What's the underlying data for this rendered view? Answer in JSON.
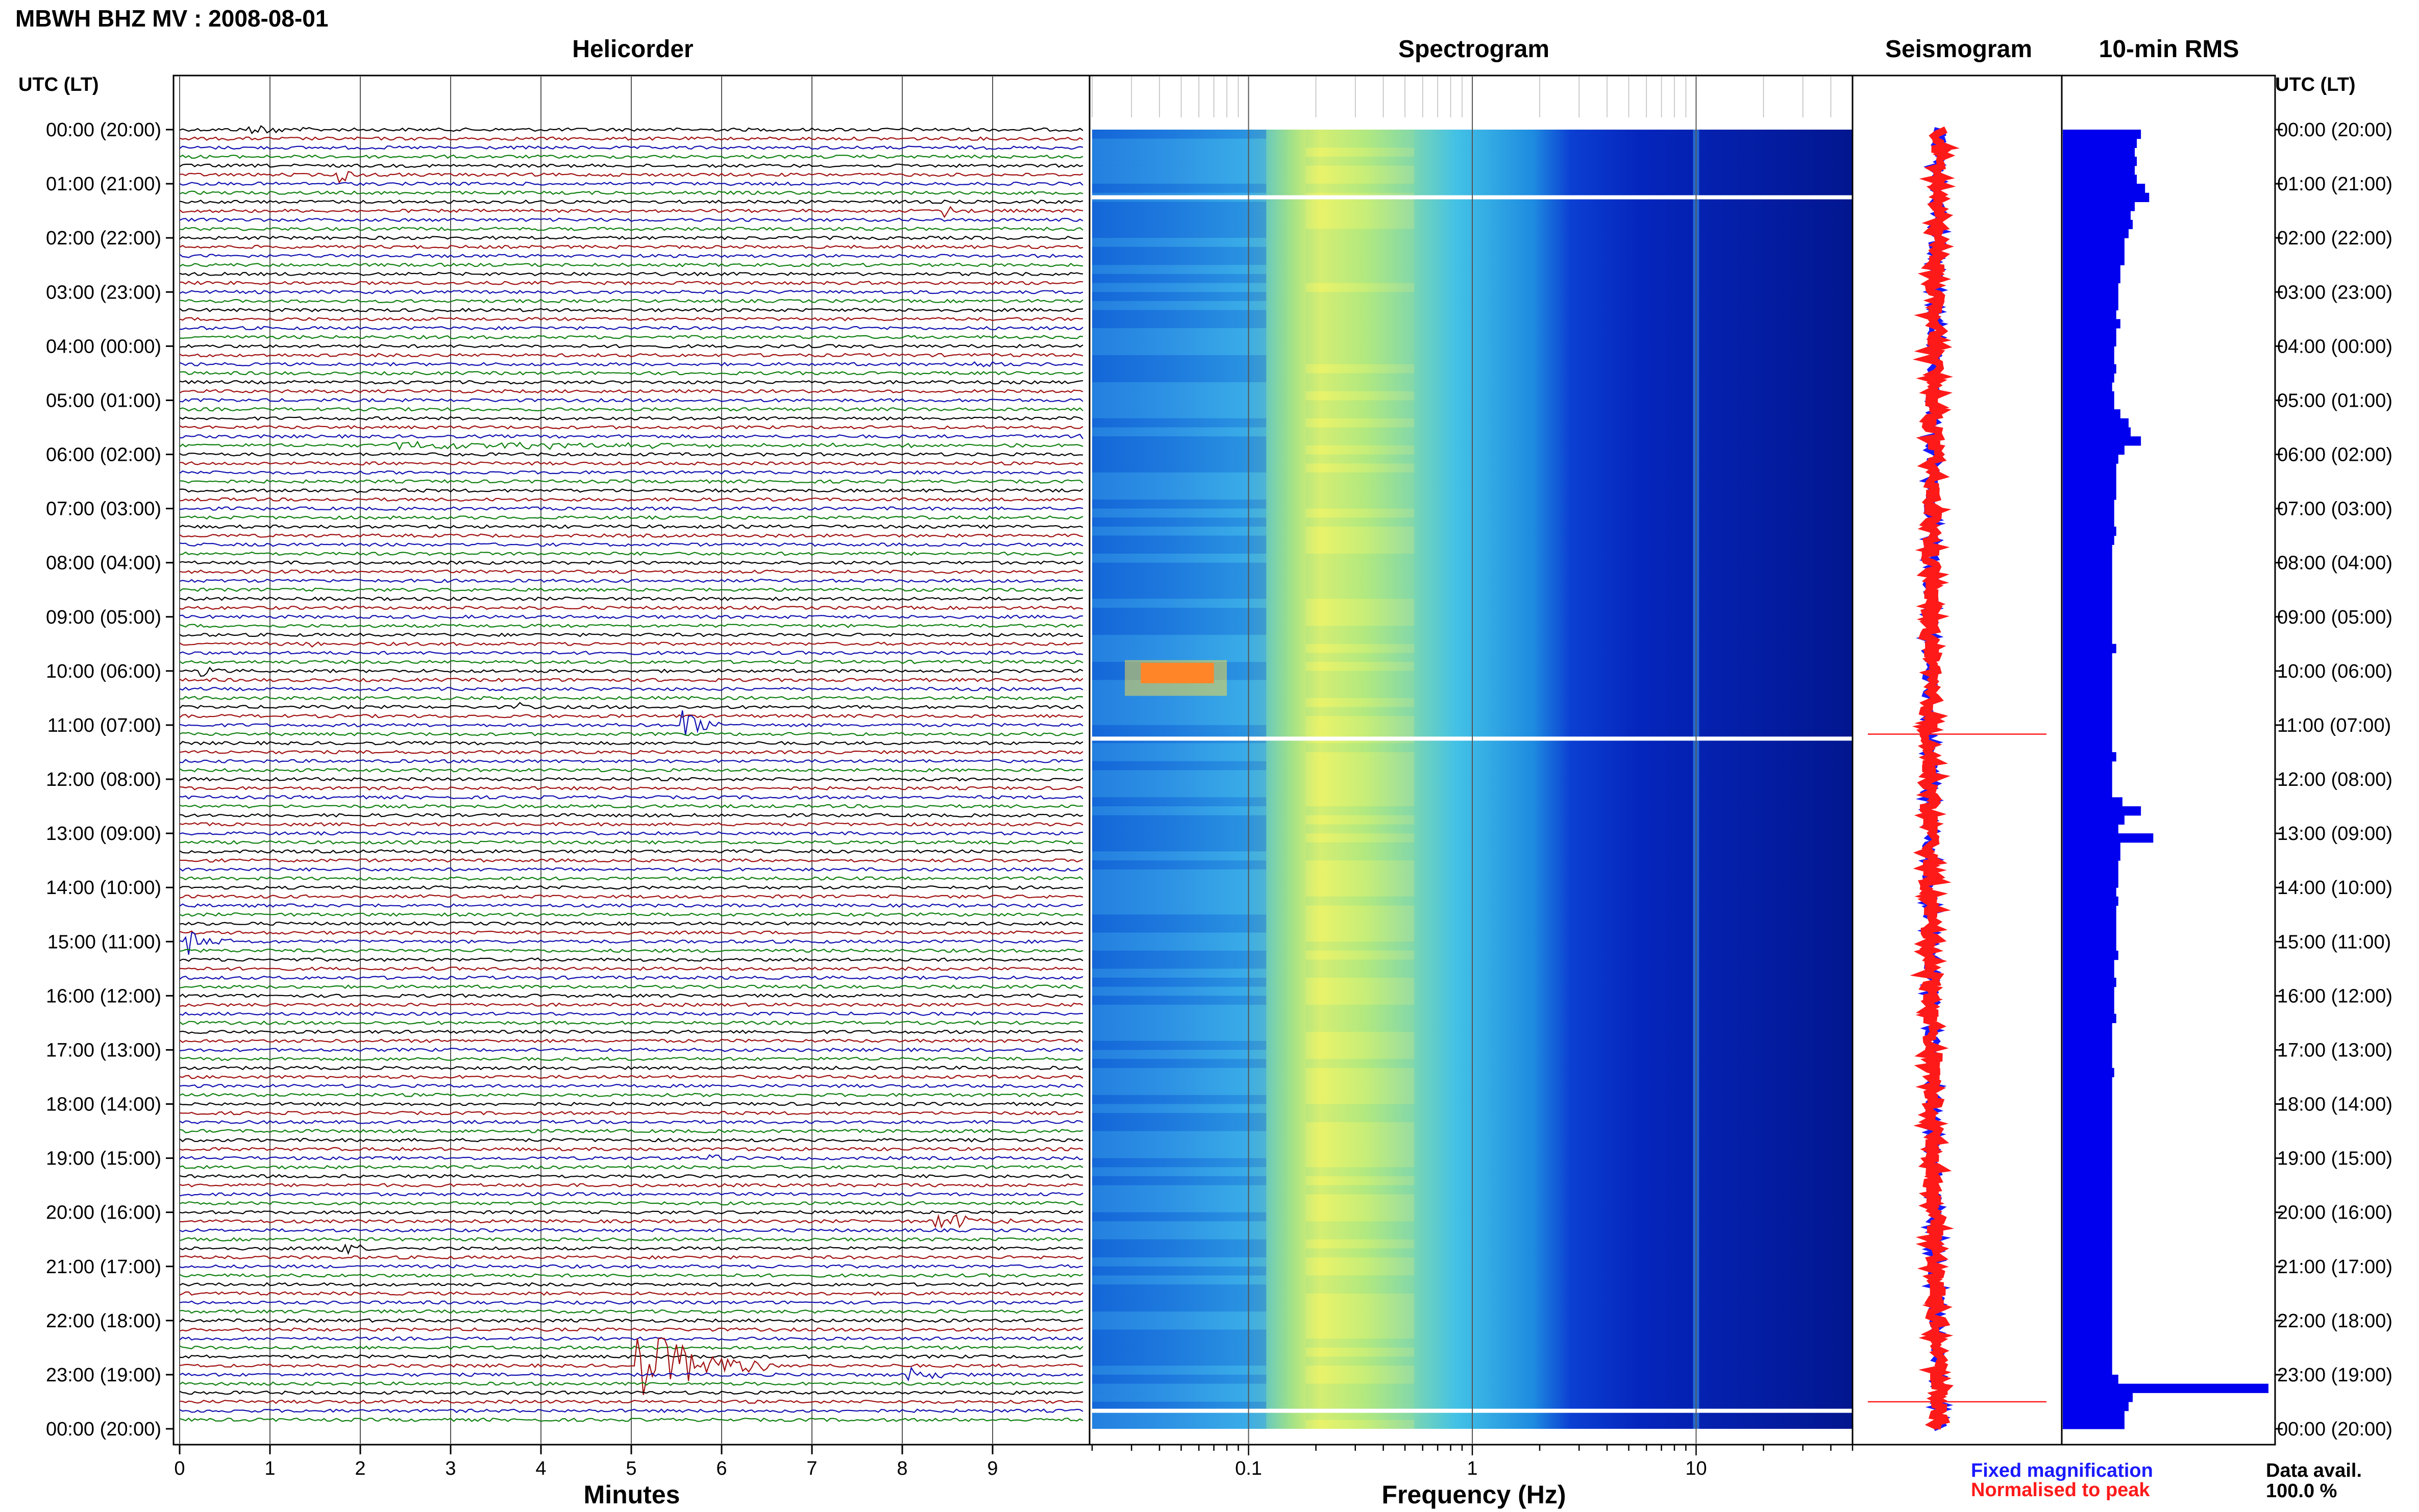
{
  "header": {
    "title": "MBWH BHZ MV : 2008-08-01"
  },
  "panels": {
    "helicorder": "Helicorder",
    "spectrogram": "Spectrogram",
    "seismogram": "Seismogram",
    "rms": "10-min RMS"
  },
  "time_axis": {
    "label_left": "UTC (LT)",
    "label_right": "UTC (LT)",
    "ticks": [
      "00:00 (20:00)",
      "01:00 (21:00)",
      "02:00 (22:00)",
      "03:00 (23:00)",
      "04:00 (00:00)",
      "05:00 (01:00)",
      "06:00 (02:00)",
      "07:00 (03:00)",
      "08:00 (04:00)",
      "09:00 (05:00)",
      "10:00 (06:00)",
      "11:00 (07:00)",
      "12:00 (08:00)",
      "13:00 (09:00)",
      "14:00 (10:00)",
      "15:00 (11:00)",
      "16:00 (12:00)",
      "17:00 (13:00)",
      "18:00 (14:00)",
      "19:00 (15:00)",
      "20:00 (16:00)",
      "21:00 (17:00)",
      "22:00 (18:00)",
      "23:00 (19:00)",
      "00:00 (20:00)"
    ]
  },
  "x_axes": {
    "minutes": {
      "title": "Minutes",
      "ticks": [
        "0",
        "1",
        "2",
        "3",
        "4",
        "5",
        "6",
        "7",
        "8",
        "9"
      ]
    },
    "frequency": {
      "title": "Frequency (Hz)",
      "ticks": [
        "0.1",
        "1",
        "10"
      ],
      "scale": "log",
      "range": [
        0.02,
        50
      ]
    }
  },
  "legend": {
    "fixed": {
      "text": "Fixed magnification",
      "color": "#1a1aff"
    },
    "normalised": {
      "text": "Normalised to peak",
      "color": "#ff1a1a"
    }
  },
  "data_availability": {
    "label": "Data avail.",
    "value": "100.0 %"
  },
  "colors": {
    "trace_cycle": [
      "#000000",
      "#a01010",
      "#1010b0",
      "#108010"
    ],
    "rms_bar": "#0000ee",
    "spectrogram_low": "#00008b",
    "spectrogram_high": "#ffff40"
  },
  "chart_data": [
    {
      "type": "line",
      "name": "helicorder",
      "xlabel": "Minutes",
      "xlim": [
        0,
        10
      ],
      "rows": 144,
      "events": [
        {
          "row": 0,
          "minute": 0.8,
          "amp": 0.5,
          "dur": 0.9
        },
        {
          "row": 5,
          "minute": 1.8,
          "amp": 0.7,
          "dur": 0.4
        },
        {
          "row": 9,
          "minute": 8.5,
          "amp": 0.6,
          "dur": 0.3
        },
        {
          "row": 26,
          "minute": 8.8,
          "amp": 0.5,
          "dur": 0.4
        },
        {
          "row": 34,
          "minute": 10.0,
          "amp": 0.4,
          "dur": 0.2
        },
        {
          "row": 35,
          "minute": 2.4,
          "amp": 0.4,
          "dur": 7.0
        },
        {
          "row": 40,
          "minute": 2.0,
          "amp": 0.5,
          "dur": 0.1
        },
        {
          "row": 57,
          "minute": 1.5,
          "amp": 0.4,
          "dur": 0.3
        },
        {
          "row": 60,
          "minute": 0.2,
          "amp": 0.7,
          "dur": 0.3
        },
        {
          "row": 64,
          "minute": 3.8,
          "amp": 0.4,
          "dur": 0.1
        },
        {
          "row": 66,
          "minute": 5.6,
          "amp": 1.6,
          "dur": 0.5
        },
        {
          "row": 90,
          "minute": 0.1,
          "amp": 1.2,
          "dur": 0.5
        },
        {
          "row": 114,
          "minute": 5.9,
          "amp": 0.6,
          "dur": 0.3
        },
        {
          "row": 121,
          "minute": 8.4,
          "amp": 1.0,
          "dur": 1.0
        },
        {
          "row": 124,
          "minute": 1.8,
          "amp": 0.7,
          "dur": 0.4
        },
        {
          "row": 137,
          "minute": 5.1,
          "amp": 4.0,
          "dur": 1.5
        },
        {
          "row": 138,
          "minute": 8.1,
          "amp": 0.8,
          "dur": 0.5
        }
      ]
    },
    {
      "type": "heatmap",
      "name": "spectrogram",
      "xlabel": "Frequency (Hz)",
      "xscale": "log",
      "xlim": [
        0.02,
        50
      ],
      "peak_band_hz": [
        0.2,
        0.4
      ],
      "gaps_utc": [
        "01:15",
        "11:15",
        "23:40"
      ],
      "notable_hz_line": 10
    },
    {
      "type": "line",
      "name": "seismogram",
      "series": [
        {
          "name": "Fixed magnification",
          "color": "#1a1aff"
        },
        {
          "name": "Normalised to peak",
          "color": "#ff1a1a"
        }
      ],
      "spikes_utc": [
        "11:10",
        "23:30"
      ]
    },
    {
      "type": "bar",
      "name": "10-min RMS",
      "orientation": "horizontal",
      "bins": 144,
      "values_relative": [
        0.38,
        0.36,
        0.35,
        0.36,
        0.35,
        0.36,
        0.4,
        0.42,
        0.35,
        0.33,
        0.34,
        0.32,
        0.3,
        0.3,
        0.3,
        0.28,
        0.28,
        0.27,
        0.27,
        0.27,
        0.26,
        0.28,
        0.26,
        0.26,
        0.25,
        0.25,
        0.26,
        0.25,
        0.24,
        0.25,
        0.25,
        0.28,
        0.32,
        0.33,
        0.38,
        0.3,
        0.27,
        0.26,
        0.26,
        0.26,
        0.26,
        0.25,
        0.25,
        0.25,
        0.26,
        0.25,
        0.24,
        0.24,
        0.24,
        0.24,
        0.24,
        0.24,
        0.24,
        0.24,
        0.24,
        0.24,
        0.24,
        0.26,
        0.24,
        0.24,
        0.24,
        0.24,
        0.24,
        0.24,
        0.24,
        0.24,
        0.24,
        0.24,
        0.24,
        0.26,
        0.24,
        0.24,
        0.24,
        0.24,
        0.29,
        0.38,
        0.3,
        0.27,
        0.44,
        0.28,
        0.28,
        0.27,
        0.27,
        0.27,
        0.26,
        0.27,
        0.26,
        0.26,
        0.26,
        0.26,
        0.26,
        0.27,
        0.25,
        0.25,
        0.26,
        0.25,
        0.25,
        0.25,
        0.26,
        0.24,
        0.24,
        0.24,
        0.24,
        0.24,
        0.25,
        0.24,
        0.24,
        0.24,
        0.24,
        0.24,
        0.24,
        0.24,
        0.24,
        0.24,
        0.24,
        0.24,
        0.24,
        0.24,
        0.24,
        0.24,
        0.24,
        0.24,
        0.24,
        0.24,
        0.24,
        0.24,
        0.24,
        0.24,
        0.24,
        0.24,
        0.24,
        0.24,
        0.24,
        0.24,
        0.24,
        0.24,
        0.24,
        0.24,
        0.27,
        1.0,
        0.34,
        0.32,
        0.3,
        0.3
      ]
    }
  ]
}
